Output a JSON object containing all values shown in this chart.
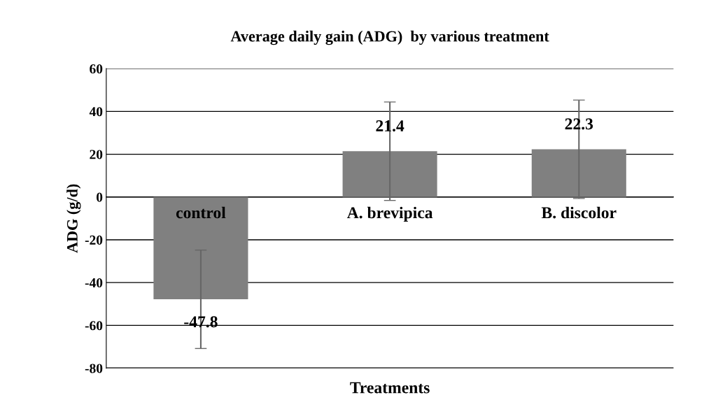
{
  "chart_data": {
    "type": "bar",
    "title": "Average daily gain (ADG)  by various treatment",
    "xlabel": "Treatments",
    "ylabel": "ADG (g/d)",
    "categories": [
      "control",
      "A. brevipica",
      "B. discolor"
    ],
    "values": [
      -47.8,
      21.4,
      22.3
    ],
    "errors": [
      23,
      23,
      23
    ],
    "color": "#808080",
    "data_labels": true,
    "ylim": [
      -80,
      60
    ],
    "yticks": [
      -80,
      -60,
      -40,
      -20,
      0,
      20,
      40,
      60
    ],
    "grid": "y",
    "legend": false
  }
}
